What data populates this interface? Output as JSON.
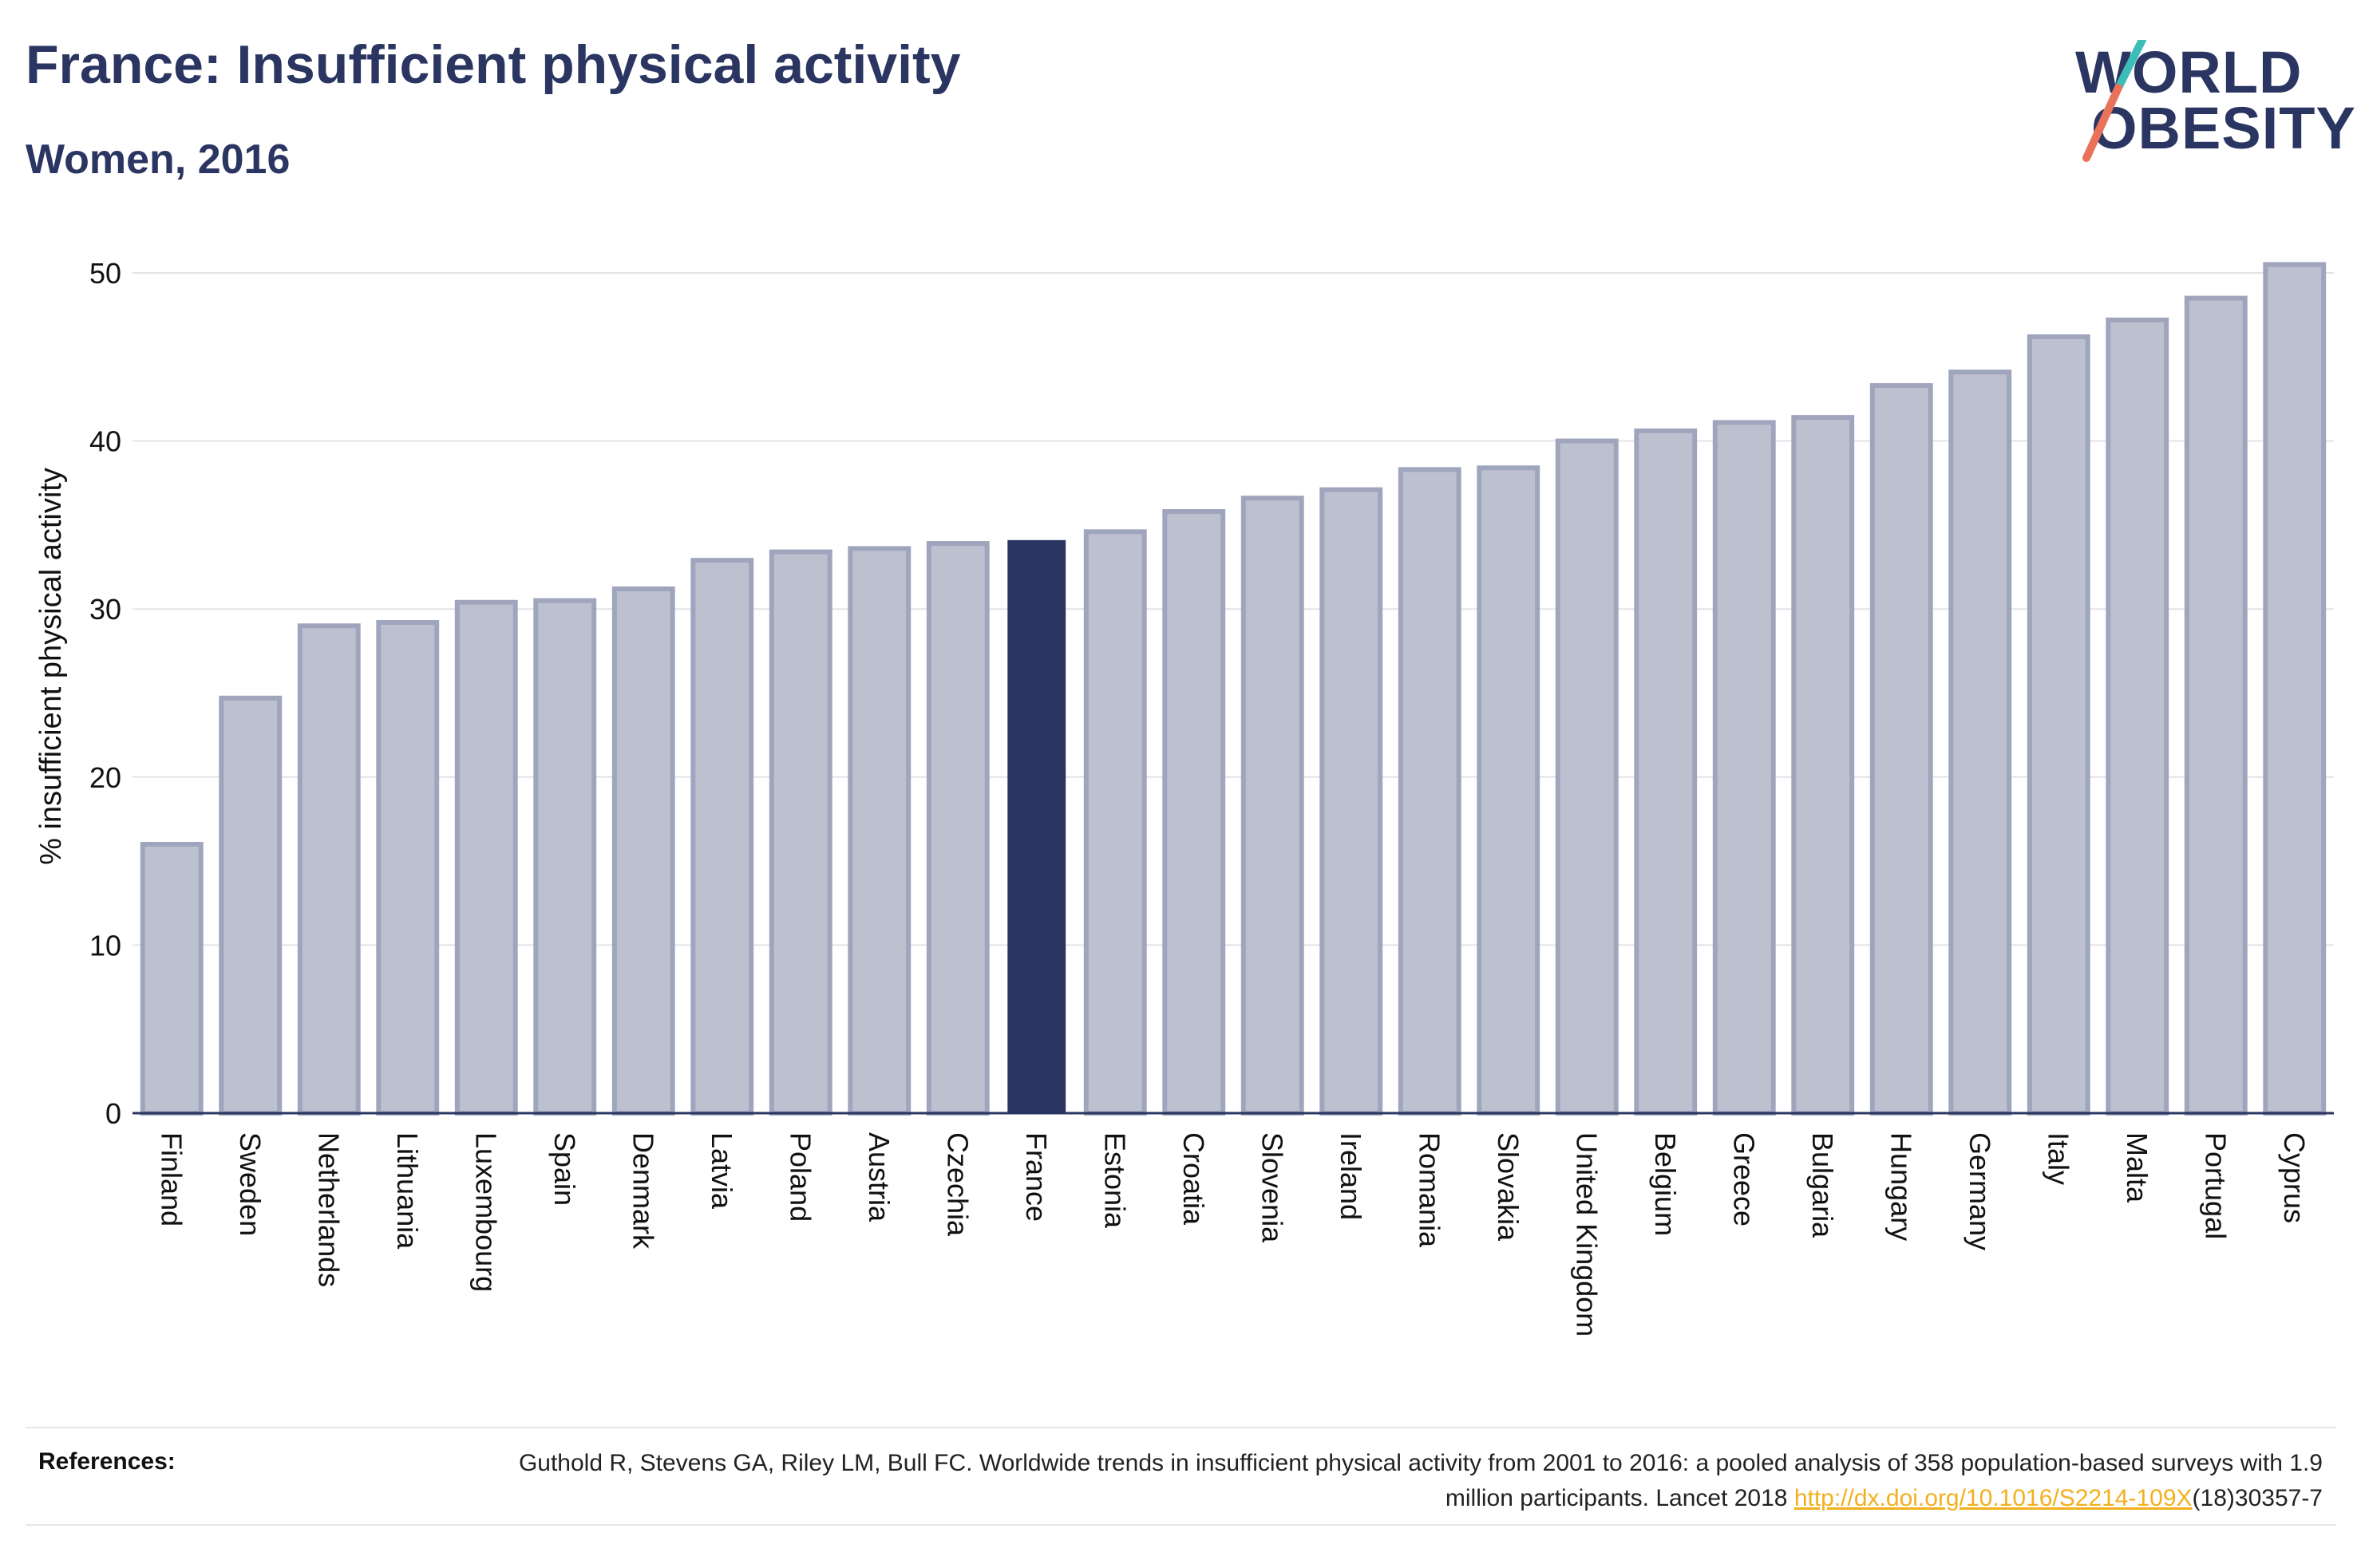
{
  "header": {
    "title": "France: Insufficient physical activity",
    "subtitle": "Women, 2016"
  },
  "logo": {
    "line1": "WORLD",
    "line2": "OBESITY",
    "slash_colors": [
      "#3dbdb8",
      "#e8735a"
    ]
  },
  "colors": {
    "bar_default": "#bdc1cf",
    "bar_border": "#9fa5bd",
    "bar_highlight": "#2b3561",
    "text_dark": "#2b3561",
    "link": "#f2b01e"
  },
  "chart_data": {
    "type": "bar",
    "title": "France: Insufficient physical activity",
    "subtitle": "Women, 2016",
    "xlabel": "",
    "ylabel": "% insufficient physical activity",
    "ylim": [
      0,
      50
    ],
    "yticks": [
      0,
      10,
      20,
      30,
      40,
      50
    ],
    "grid": true,
    "highlight": "France",
    "categories": [
      "Finland",
      "Sweden",
      "Netherlands",
      "Lithuania",
      "Luxembourg",
      "Spain",
      "Denmark",
      "Latvia",
      "Poland",
      "Austria",
      "Czechia",
      "France",
      "Estonia",
      "Croatia",
      "Slovenia",
      "Ireland",
      "Romania",
      "Slovakia",
      "United Kingdom",
      "Belgium",
      "Greece",
      "Bulgaria",
      "Hungary",
      "Germany",
      "Italy",
      "Malta",
      "Portugal",
      "Cyprus"
    ],
    "values": [
      16.0,
      24.7,
      29.0,
      29.2,
      30.4,
      30.5,
      31.2,
      32.9,
      33.4,
      33.6,
      33.9,
      34.1,
      34.6,
      35.8,
      36.6,
      37.1,
      38.3,
      38.4,
      40.0,
      40.6,
      41.1,
      41.4,
      43.3,
      44.1,
      46.2,
      47.2,
      48.5,
      50.5
    ]
  },
  "references": {
    "label": "References:",
    "text": "Guthold R, Stevens GA, Riley LM, Bull FC. Worldwide trends in insufficient physical activity from 2001 to 2016: a pooled analysis of 358 population-based surveys with 1.9 million participants. Lancet 2018 ",
    "link": "http://dx.doi.org/10.1016/S2214-109X",
    "suffix": "(18)30357-7"
  }
}
